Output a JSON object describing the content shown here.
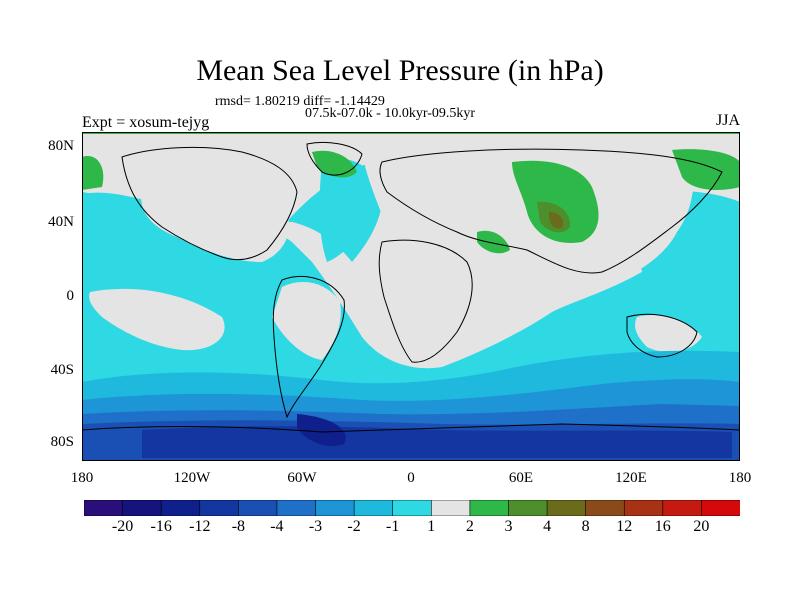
{
  "title": "Mean Sea Level Pressure (in hPa)",
  "stats": "rmsd= 1.80219 diff= -1.14429",
  "period": "07.5k-07.0k - 10.0kyr-09.5kyr",
  "experiment": "Expt = xosum-tejyg",
  "season": "JJA",
  "lat_labels": [
    "80N",
    "40N",
    "0",
    "40S",
    "80S"
  ],
  "lon_labels": [
    "180",
    "120W",
    "60W",
    "0",
    "60E",
    "120E",
    "180"
  ],
  "colorbar": {
    "labels": [
      "-20",
      "-16",
      "-12",
      "-8",
      "-4",
      "-3",
      "-2",
      "-1",
      "1",
      "2",
      "3",
      "4",
      "8",
      "12",
      "16",
      "20"
    ],
    "colors": [
      "#2a0f7a",
      "#15137d",
      "#0f1f8c",
      "#1436a0",
      "#1a4fb4",
      "#1f70c8",
      "#1e95d6",
      "#1fb9de",
      "#2fd9e4",
      "#e4e4e4",
      "#2fb84a",
      "#4e8f2d",
      "#6b6b1c",
      "#8a4a1a",
      "#a83214",
      "#c41a10",
      "#d40a0a"
    ]
  },
  "colors": {
    "land_outline": "#000000",
    "neutral": "#e4e4e4"
  }
}
